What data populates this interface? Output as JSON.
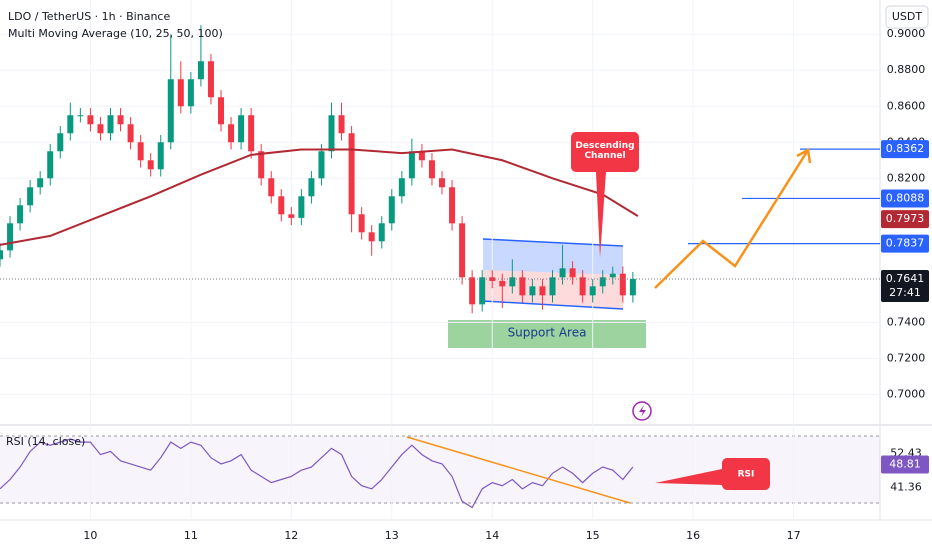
{
  "chart_data": [
    {
      "type": "candlestick",
      "title": "LDO / TetherUS · 1h · Binance",
      "currency": "USDT",
      "x": [
        9.1,
        9.2,
        9.3,
        9.4,
        9.5,
        9.6,
        9.7,
        9.8,
        9.9,
        10.0,
        10.1,
        10.2,
        10.3,
        10.4,
        10.5,
        10.6,
        10.7,
        10.8,
        10.9,
        11.0,
        11.1,
        11.2,
        11.3,
        11.4,
        11.5,
        11.6,
        11.7,
        11.8,
        11.9,
        12.0,
        12.1,
        12.2,
        12.3,
        12.4,
        12.5,
        12.6,
        12.7,
        12.8,
        12.9,
        13.0,
        13.1,
        13.2,
        13.3,
        13.4,
        13.5,
        13.6,
        13.7,
        13.8,
        13.9,
        14.0,
        14.1,
        14.2,
        14.3,
        14.4,
        14.5,
        14.6,
        14.7,
        14.8,
        14.9,
        15.0,
        15.1,
        15.2,
        15.3,
        15.4
      ],
      "open": [
        0.775,
        0.78,
        0.795,
        0.805,
        0.815,
        0.82,
        0.835,
        0.845,
        0.855,
        0.855,
        0.85,
        0.845,
        0.855,
        0.85,
        0.84,
        0.83,
        0.825,
        0.84,
        0.875,
        0.86,
        0.875,
        0.885,
        0.865,
        0.85,
        0.84,
        0.855,
        0.835,
        0.82,
        0.81,
        0.8,
        0.798,
        0.81,
        0.82,
        0.835,
        0.855,
        0.845,
        0.8,
        0.79,
        0.785,
        0.795,
        0.81,
        0.82,
        0.835,
        0.83,
        0.82,
        0.815,
        0.795,
        0.765,
        0.75,
        0.765,
        0.763,
        0.76,
        0.765,
        0.755,
        0.76,
        0.755,
        0.765,
        0.77,
        0.765,
        0.755,
        0.76,
        0.765,
        0.767,
        0.755
      ],
      "high": [
        0.784,
        0.799,
        0.809,
        0.819,
        0.824,
        0.839,
        0.849,
        0.862,
        0.859,
        0.859,
        0.854,
        0.859,
        0.859,
        0.854,
        0.844,
        0.834,
        0.844,
        0.9,
        0.885,
        0.879,
        0.905,
        0.889,
        0.869,
        0.854,
        0.859,
        0.859,
        0.839,
        0.824,
        0.814,
        0.804,
        0.814,
        0.824,
        0.839,
        0.862,
        0.862,
        0.849,
        0.804,
        0.794,
        0.799,
        0.814,
        0.824,
        0.842,
        0.839,
        0.834,
        0.824,
        0.819,
        0.799,
        0.769,
        0.769,
        0.769,
        0.767,
        0.775,
        0.769,
        0.764,
        0.764,
        0.769,
        0.783,
        0.774,
        0.769,
        0.764,
        0.769,
        0.771,
        0.771,
        0.768
      ],
      "low": [
        0.771,
        0.776,
        0.791,
        0.801,
        0.811,
        0.816,
        0.831,
        0.841,
        0.851,
        0.846,
        0.841,
        0.841,
        0.846,
        0.836,
        0.826,
        0.821,
        0.821,
        0.836,
        0.856,
        0.856,
        0.871,
        0.861,
        0.846,
        0.836,
        0.836,
        0.831,
        0.816,
        0.806,
        0.796,
        0.794,
        0.794,
        0.806,
        0.816,
        0.831,
        0.841,
        0.79,
        0.786,
        0.777,
        0.781,
        0.791,
        0.806,
        0.816,
        0.826,
        0.816,
        0.811,
        0.791,
        0.761,
        0.745,
        0.746,
        0.759,
        0.748,
        0.756,
        0.751,
        0.751,
        0.747,
        0.751,
        0.761,
        0.761,
        0.751,
        0.751,
        0.756,
        0.761,
        0.751,
        0.751
      ],
      "close": [
        0.78,
        0.795,
        0.805,
        0.815,
        0.82,
        0.835,
        0.845,
        0.855,
        0.855,
        0.85,
        0.845,
        0.855,
        0.85,
        0.84,
        0.83,
        0.825,
        0.84,
        0.875,
        0.86,
        0.875,
        0.885,
        0.865,
        0.85,
        0.84,
        0.855,
        0.835,
        0.82,
        0.81,
        0.8,
        0.798,
        0.81,
        0.82,
        0.835,
        0.855,
        0.845,
        0.8,
        0.79,
        0.785,
        0.795,
        0.81,
        0.82,
        0.835,
        0.83,
        0.82,
        0.815,
        0.795,
        0.765,
        0.75,
        0.765,
        0.763,
        0.76,
        0.765,
        0.755,
        0.76,
        0.755,
        0.765,
        0.77,
        0.765,
        0.755,
        0.76,
        0.765,
        0.767,
        0.755,
        0.7641
      ],
      "up_color": "#089981",
      "down_color": "#f23645",
      "series": [
        {
          "name": "Multi Moving Average (10, 25, 50, 100)",
          "color": "#b22833",
          "x": [
            9.1,
            9.6,
            10.1,
            10.6,
            11.1,
            11.6,
            12.1,
            12.6,
            13.1,
            13.6,
            14.1,
            14.6,
            15.1,
            15.45
          ],
          "values": [
            0.783,
            0.788,
            0.799,
            0.81,
            0.822,
            0.833,
            0.836,
            0.836,
            0.834,
            0.836,
            0.83,
            0.82,
            0.811,
            0.799
          ],
          "last": 0.7973
        }
      ],
      "xlim": [
        9.1,
        17.86
      ],
      "xticks": [
        10,
        11,
        12,
        13,
        14,
        15,
        16,
        17
      ],
      "ylim": [
        0.683,
        0.919
      ],
      "yticks": [
        {
          "value": 0.9,
          "label": "0.9000"
        },
        {
          "value": 0.88,
          "label": "0.8800"
        },
        {
          "value": 0.86,
          "label": "0.8600"
        },
        {
          "value": 0.84,
          "label": "0.8400"
        },
        {
          "value": 0.82,
          "label": "0.8200"
        },
        {
          "value": 0.74,
          "label": "0.7400"
        },
        {
          "value": 0.72,
          "label": "0.7200"
        },
        {
          "value": 0.7,
          "label": "0.7000"
        }
      ],
      "price_levels": [
        {
          "value": 0.8362,
          "color": "#2962ff"
        },
        {
          "value": 0.8088,
          "color": "#2962ff"
        },
        {
          "value": 0.7837,
          "color": "#2962ff"
        }
      ],
      "last_price": {
        "value": 0.7641,
        "countdown": "27:41"
      },
      "annotations": {
        "channel": "Descending Channel",
        "support": "Support Area",
        "rsi": "RSI"
      }
    },
    {
      "type": "line",
      "title": "RSI (14, close)",
      "color": "#7e57c2",
      "x": [
        9.1,
        9.2,
        9.3,
        9.4,
        9.5,
        9.6,
        9.7,
        9.8,
        9.9,
        10.0,
        10.1,
        10.2,
        10.3,
        10.4,
        10.5,
        10.6,
        10.7,
        10.8,
        10.9,
        11.0,
        11.1,
        11.2,
        11.3,
        11.4,
        11.5,
        11.6,
        11.7,
        11.8,
        11.9,
        12.0,
        12.1,
        12.2,
        12.3,
        12.4,
        12.5,
        12.6,
        12.7,
        12.8,
        12.9,
        13.0,
        13.1,
        13.2,
        13.3,
        13.4,
        13.5,
        13.6,
        13.7,
        13.8,
        13.9,
        14.0,
        14.1,
        14.2,
        14.3,
        14.4,
        14.5,
        14.6,
        14.7,
        14.8,
        14.9,
        15.0,
        15.1,
        15.2,
        15.3,
        15.4
      ],
      "values": [
        41,
        44,
        48,
        53,
        56,
        55,
        56,
        57,
        56,
        56,
        52,
        53,
        50,
        49,
        48,
        47,
        51,
        56,
        54,
        56,
        55,
        51,
        49,
        50,
        52,
        47,
        45,
        43,
        44,
        45,
        47,
        48,
        51,
        54,
        52,
        45,
        42,
        41,
        44,
        48,
        52,
        55,
        52,
        50,
        49,
        45,
        37,
        35,
        41,
        43,
        42,
        44,
        41,
        43,
        42,
        46,
        48,
        46,
        43,
        46,
        48,
        47,
        44,
        48
      ],
      "ylim": [
        31,
        61.5
      ],
      "yticks": [
        52.43,
        41.36
      ],
      "current": 48.81
    }
  ]
}
